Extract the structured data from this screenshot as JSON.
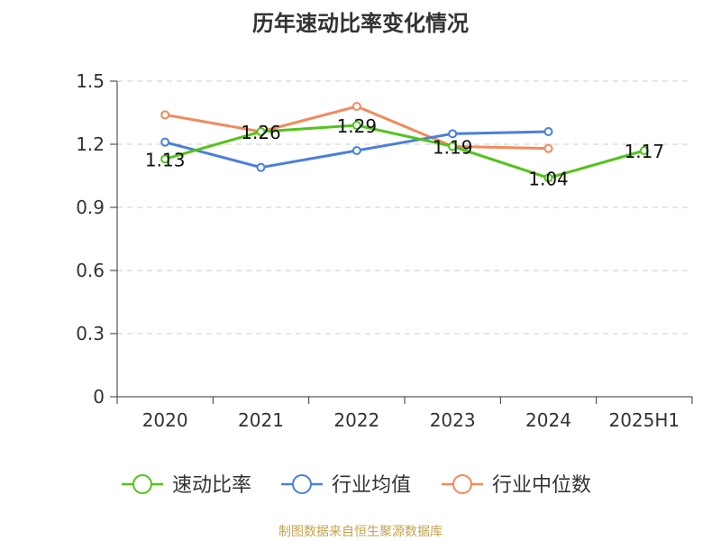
{
  "chart_data": {
    "type": "line",
    "title": "历年速动比率变化情况",
    "categories": [
      "2020",
      "2021",
      "2022",
      "2023",
      "2024",
      "2025H1"
    ],
    "ylim": [
      0,
      1.5
    ],
    "yticks": [
      "0",
      "0.3",
      "0.6",
      "0.9",
      "1.2",
      "1.5"
    ],
    "grid": true,
    "legend_position": "bottom",
    "series": [
      {
        "name": "速动比率",
        "color": "#52c41a",
        "values": [
          1.13,
          1.26,
          1.29,
          1.19,
          1.04,
          1.17
        ],
        "labels": [
          "1.13",
          "1.26",
          "1.29",
          "1.19",
          "1.04",
          "1.17"
        ]
      },
      {
        "name": "行业均值",
        "color": "#4a7fdc",
        "values": [
          1.21,
          1.09,
          1.17,
          1.25,
          1.26,
          null
        ]
      },
      {
        "name": "行业中位数",
        "color": "#f5895a",
        "values": [
          1.34,
          1.26,
          1.38,
          1.19,
          1.18,
          null
        ]
      }
    ],
    "source": "制图数据来自恒生聚源数据库"
  }
}
